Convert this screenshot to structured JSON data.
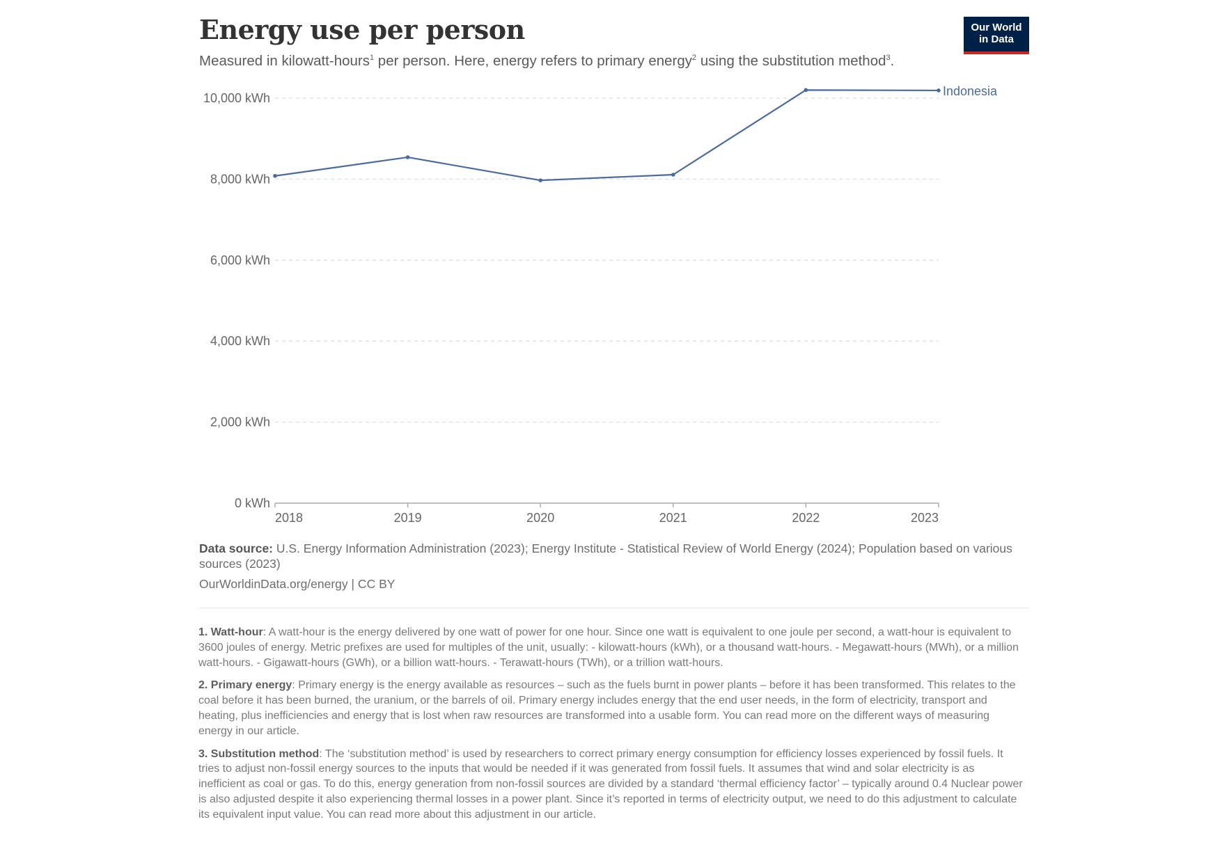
{
  "header": {
    "title": "Energy use per person",
    "subtitle_parts": [
      "Measured in kilowatt-hours",
      "1",
      " per person. Here, energy refers to primary energy",
      "2",
      " using the substitution method",
      "3",
      "."
    ],
    "logo_line1": "Our World",
    "logo_line2": "in Data"
  },
  "chart_data": {
    "type": "line",
    "x": [
      2018,
      2019,
      2020,
      2021,
      2022,
      2023
    ],
    "series": [
      {
        "name": "Indonesia",
        "values": [
          8080,
          8540,
          7970,
          8110,
          10200,
          10190
        ],
        "color": "#4c6a9c"
      }
    ],
    "yticks": [
      0,
      2000,
      4000,
      6000,
      8000,
      10000
    ],
    "ytick_labels": [
      "0 kWh",
      "2,000 kWh",
      "4,000 kWh",
      "6,000 kWh",
      "8,000 kWh",
      "10,000 kWh"
    ],
    "xtick_labels": [
      "2018",
      "2019",
      "2020",
      "2021",
      "2022",
      "2023"
    ],
    "ylim": [
      0,
      10000
    ],
    "grid": "horizontal dashed",
    "legend": "inline label at line end"
  },
  "footer": {
    "source_label": "Data source:",
    "source_text": " U.S. Energy Information Administration (2023); Energy Institute - Statistical Review of World Energy (2024); Population based on various sources (2023)",
    "url": "OurWorldinData.org/energy | CC BY"
  },
  "notes": [
    {
      "label": "1. Watt-hour",
      "text": ": A watt-hour is the energy delivered by one watt of power for one hour. Since one watt is equivalent to one joule per second, a watt-hour is equivalent to 3600 joules of energy. Metric prefixes are used for multiples of the unit, usually: - kilowatt-hours (kWh), or a thousand watt-hours. - Megawatt-hours (MWh), or a million watt-hours. - Gigawatt-hours (GWh), or a billion watt-hours. - Terawatt-hours (TWh), or a trillion watt-hours."
    },
    {
      "label": "2. Primary energy",
      "text": ": Primary energy is the energy available as resources – such as the fuels burnt in power plants – before it has been transformed. This relates to the coal before it has been burned, the uranium, or the barrels of oil. Primary energy includes energy that the end user needs, in the form of electricity, transport and heating, plus inefficiencies and energy that is lost when raw resources are transformed into a usable form. You can read more on the different ways of measuring energy in our article."
    },
    {
      "label": "3. Substitution method",
      "text": ": The ‘substitution method’ is used by researchers to correct primary energy consumption for efficiency losses experienced by fossil fuels. It tries to adjust non-fossil energy sources to the inputs that would be needed if it was generated from fossil fuels. It assumes that wind and solar electricity is as inefficient as coal or gas. To do this, energy generation from non-fossil sources are divided by a standard ‘thermal efficiency factor’ – typically around 0.4 Nuclear power is also adjusted despite it also experiencing thermal losses in a power plant. Since it’s reported in terms of electricity output, we need to do this adjustment to calculate its equivalent input value. You can read more about this adjustment in our article."
    }
  ]
}
